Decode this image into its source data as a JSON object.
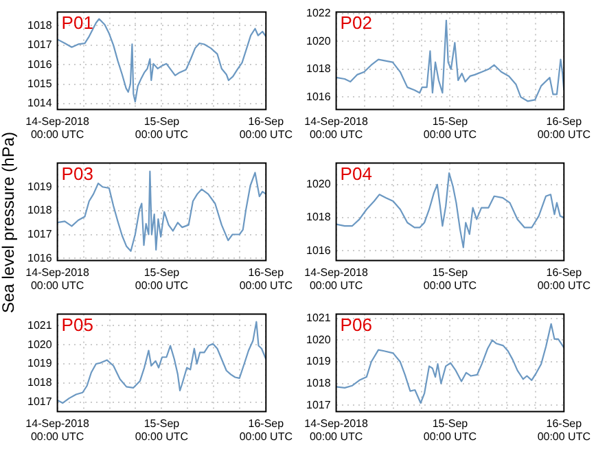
{
  "chart_data": [
    {
      "type": "line",
      "title": "P01",
      "ylabel": "Sea level pressure (hPa)",
      "color": "#6b98c2",
      "xlim": [
        "2018-09-14T00:00",
        "2018-09-16T00:00"
      ],
      "ylim": [
        1013.7,
        1018.7
      ],
      "yticks": [
        1014,
        1015,
        1016,
        1017,
        1018
      ],
      "xticks": [
        {
          "value": "2018-09-14T00:00",
          "label": "14-Sep-2018\n00:00 UTC"
        },
        {
          "value": "2018-09-14T06:00",
          "label": null
        },
        {
          "value": "2018-09-14T12:00",
          "label": null
        },
        {
          "value": "2018-09-14T18:00",
          "label": null
        },
        {
          "value": "2018-09-15T00:00",
          "label": "15-Sep\n00:00 UTC"
        },
        {
          "value": "2018-09-15T06:00",
          "label": null
        },
        {
          "value": "2018-09-15T12:00",
          "label": null
        },
        {
          "value": "2018-09-15T18:00",
          "label": null
        },
        {
          "value": "2018-09-16T00:00",
          "label": "16-Sep\n00:00 UTC"
        }
      ],
      "grid": true,
      "x": [
        "2018-09-14T00:00",
        "2018-09-14T01:42",
        "2018-09-14T03:18",
        "2018-09-14T04:48",
        "2018-09-14T06:18",
        "2018-09-14T07:18",
        "2018-09-14T08:54",
        "2018-09-14T09:36",
        "2018-09-14T10:54",
        "2018-09-14T11:54",
        "2018-09-14T12:54",
        "2018-09-14T13:54",
        "2018-09-14T14:54",
        "2018-09-14T15:48",
        "2018-09-14T16:18",
        "2018-09-14T16:48",
        "2018-09-14T17:12",
        "2018-09-14T17:30",
        "2018-09-14T17:54",
        "2018-09-14T18:30",
        "2018-09-14T19:18",
        "2018-09-14T20:00",
        "2018-09-14T20:42",
        "2018-09-14T21:18",
        "2018-09-14T21:36",
        "2018-09-14T22:06",
        "2018-09-14T23:06",
        "2018-09-15T00:06",
        "2018-09-15T01:06",
        "2018-09-15T02:06",
        "2018-09-15T03:06",
        "2018-09-15T04:06",
        "2018-09-15T05:36",
        "2018-09-15T06:42",
        "2018-09-15T07:42",
        "2018-09-15T08:42",
        "2018-09-15T09:48",
        "2018-09-15T11:18",
        "2018-09-15T12:48",
        "2018-09-15T13:48",
        "2018-09-15T14:54",
        "2018-09-15T15:24",
        "2018-09-15T16:24",
        "2018-09-15T17:24",
        "2018-09-15T18:30",
        "2018-09-15T19:30",
        "2018-09-15T20:30",
        "2018-09-15T21:30",
        "2018-09-15T22:12",
        "2018-09-15T23:12",
        "2018-09-16T00:00"
      ],
      "values": [
        1017.3,
        1017.1,
        1016.9,
        1017.05,
        1017.1,
        1017.45,
        1018.15,
        1018.35,
        1018.05,
        1017.6,
        1017.0,
        1016.2,
        1015.5,
        1014.8,
        1014.6,
        1015.0,
        1017.05,
        1014.5,
        1014.1,
        1014.9,
        1015.3,
        1015.6,
        1015.8,
        1016.3,
        1015.2,
        1016.05,
        1015.8,
        1015.95,
        1016.05,
        1015.75,
        1015.45,
        1015.6,
        1015.75,
        1016.3,
        1016.85,
        1017.1,
        1017.05,
        1016.85,
        1016.55,
        1015.8,
        1015.5,
        1015.2,
        1015.4,
        1015.75,
        1016.1,
        1016.8,
        1017.5,
        1017.85,
        1017.5,
        1017.7,
        1017.45
      ]
    },
    {
      "type": "line",
      "title": "P02",
      "color": "#6b98c2",
      "xlim": [
        "2018-09-14T00:00",
        "2018-09-16T00:00"
      ],
      "ylim": [
        1015.1,
        1022.1
      ],
      "yticks": [
        1016,
        1018,
        1020,
        1022
      ],
      "xticks": [
        {
          "value": "2018-09-14T00:00",
          "label": "14-Sep-2018\n00:00 UTC"
        },
        {
          "value": "2018-09-14T06:00",
          "label": null
        },
        {
          "value": "2018-09-14T12:00",
          "label": null
        },
        {
          "value": "2018-09-14T18:00",
          "label": null
        },
        {
          "value": "2018-09-15T00:00",
          "label": "15-Sep\n00:00 UTC"
        },
        {
          "value": "2018-09-15T06:00",
          "label": null
        },
        {
          "value": "2018-09-15T12:00",
          "label": null
        },
        {
          "value": "2018-09-15T18:00",
          "label": null
        },
        {
          "value": "2018-09-16T00:00",
          "label": "16-Sep\n00:00 UTC"
        }
      ],
      "grid": true,
      "x": [
        "2018-09-14T00:00",
        "2018-09-14T01:48",
        "2018-09-14T03:00",
        "2018-09-14T04:24",
        "2018-09-14T05:54",
        "2018-09-14T07:24",
        "2018-09-14T08:54",
        "2018-09-14T10:24",
        "2018-09-14T11:54",
        "2018-09-14T13:30",
        "2018-09-14T15:00",
        "2018-09-14T16:30",
        "2018-09-14T17:36",
        "2018-09-14T18:06",
        "2018-09-14T19:06",
        "2018-09-14T19:48",
        "2018-09-14T20:18",
        "2018-09-14T20:54",
        "2018-09-14T21:36",
        "2018-09-14T22:24",
        "2018-09-14T23:12",
        "2018-09-14T23:36",
        "2018-09-15T00:12",
        "2018-09-15T01:00",
        "2018-09-15T01:42",
        "2018-09-15T02:30",
        "2018-09-15T03:12",
        "2018-09-15T04:12",
        "2018-09-15T05:12",
        "2018-09-15T06:42",
        "2018-09-15T08:06",
        "2018-09-15T09:18",
        "2018-09-15T10:48",
        "2018-09-15T12:24",
        "2018-09-15T13:54",
        "2018-09-15T14:54",
        "2018-09-15T16:24",
        "2018-09-15T17:54",
        "2018-09-15T19:12",
        "2018-09-15T21:00",
        "2018-09-15T21:42",
        "2018-09-15T22:30",
        "2018-09-15T23:18",
        "2018-09-15T23:42",
        "2018-09-16T00:00"
      ],
      "values": [
        1017.4,
        1017.3,
        1017.1,
        1017.6,
        1017.8,
        1018.3,
        1018.7,
        1018.6,
        1018.5,
        1017.8,
        1016.7,
        1016.5,
        1016.3,
        1016.7,
        1016.7,
        1019.3,
        1016.3,
        1018.5,
        1017.2,
        1016.3,
        1021.5,
        1018.5,
        1018.0,
        1019.9,
        1017.2,
        1017.7,
        1017.1,
        1017.5,
        1017.6,
        1017.8,
        1018.0,
        1018.3,
        1017.8,
        1017.5,
        1016.9,
        1016.0,
        1015.7,
        1015.8,
        1016.8,
        1017.4,
        1016.2,
        1016.2,
        1018.7,
        1017.7,
        1016.5
      ]
    },
    {
      "type": "line",
      "title": "P03",
      "color": "#6b98c2",
      "xlim": [
        "2018-09-14T00:00",
        "2018-09-16T00:00"
      ],
      "ylim": [
        1015.9,
        1020
      ],
      "yticks": [
        1016,
        1017,
        1018,
        1019
      ],
      "xticks": [
        {
          "value": "2018-09-14T00:00",
          "label": "14-Sep-2018\n00:00 UTC"
        },
        {
          "value": "2018-09-14T06:00",
          "label": null
        },
        {
          "value": "2018-09-14T12:00",
          "label": null
        },
        {
          "value": "2018-09-14T18:00",
          "label": null
        },
        {
          "value": "2018-09-15T00:00",
          "label": "15-Sep\n00:00 UTC"
        },
        {
          "value": "2018-09-15T06:00",
          "label": null
        },
        {
          "value": "2018-09-15T12:00",
          "label": null
        },
        {
          "value": "2018-09-15T18:00",
          "label": null
        },
        {
          "value": "2018-09-16T00:00",
          "label": "16-Sep\n00:00 UTC"
        }
      ],
      "grid": true,
      "x": [
        "2018-09-14T00:00",
        "2018-09-14T01:42",
        "2018-09-14T03:18",
        "2018-09-14T04:48",
        "2018-09-14T06:18",
        "2018-09-14T07:18",
        "2018-09-14T08:18",
        "2018-09-14T09:24",
        "2018-09-14T10:24",
        "2018-09-14T11:54",
        "2018-09-14T12:54",
        "2018-09-14T13:54",
        "2018-09-14T14:54",
        "2018-09-14T15:54",
        "2018-09-14T16:54",
        "2018-09-14T17:54",
        "2018-09-14T18:54",
        "2018-09-14T19:24",
        "2018-09-14T19:54",
        "2018-09-14T20:24",
        "2018-09-14T21:00",
        "2018-09-14T21:18",
        "2018-09-14T21:42",
        "2018-09-14T22:18",
        "2018-09-14T22:42",
        "2018-09-14T23:12",
        "2018-09-14T23:48",
        "2018-09-15T00:36",
        "2018-09-15T01:36",
        "2018-09-15T02:36",
        "2018-09-15T03:42",
        "2018-09-15T04:42",
        "2018-09-15T06:12",
        "2018-09-15T07:12",
        "2018-09-15T08:12",
        "2018-09-15T09:12",
        "2018-09-15T10:42",
        "2018-09-15T12:18",
        "2018-09-15T13:48",
        "2018-09-15T15:18",
        "2018-09-15T16:18",
        "2018-09-15T17:54",
        "2018-09-15T18:42",
        "2018-09-15T19:24",
        "2018-09-15T20:24",
        "2018-09-15T21:30",
        "2018-09-15T22:30",
        "2018-09-15T23:12",
        "2018-09-16T00:00"
      ],
      "values": [
        1017.5,
        1017.55,
        1017.35,
        1017.6,
        1017.75,
        1018.4,
        1018.7,
        1019.15,
        1019.0,
        1018.95,
        1018.2,
        1017.55,
        1016.95,
        1016.5,
        1016.3,
        1017.0,
        1018.05,
        1018.3,
        1016.55,
        1017.45,
        1017.0,
        1019.65,
        1017.0,
        1017.85,
        1016.35,
        1017.65,
        1016.9,
        1017.95,
        1017.4,
        1017.15,
        1017.5,
        1017.3,
        1017.4,
        1018.4,
        1018.7,
        1018.9,
        1018.7,
        1018.3,
        1017.4,
        1016.75,
        1017.0,
        1017.0,
        1017.2,
        1018.05,
        1019.05,
        1019.6,
        1018.6,
        1018.8,
        1018.7
      ]
    },
    {
      "type": "line",
      "title": "P04",
      "color": "#6b98c2",
      "xlim": [
        "2018-09-14T00:00",
        "2018-09-16T00:00"
      ],
      "ylim": [
        1015.4,
        1021.3
      ],
      "yticks": [
        1016,
        1018,
        1020
      ],
      "xticks": [
        {
          "value": "2018-09-14T00:00",
          "label": "14-Sep-2018\n00:00 UTC"
        },
        {
          "value": "2018-09-14T06:00",
          "label": null
        },
        {
          "value": "2018-09-14T12:00",
          "label": null
        },
        {
          "value": "2018-09-14T18:00",
          "label": null
        },
        {
          "value": "2018-09-15T00:00",
          "label": "15-Sep\n00:00 UTC"
        },
        {
          "value": "2018-09-15T06:00",
          "label": null
        },
        {
          "value": "2018-09-15T12:00",
          "label": null
        },
        {
          "value": "2018-09-15T18:00",
          "label": null
        },
        {
          "value": "2018-09-16T00:00",
          "label": "16-Sep\n00:00 UTC"
        }
      ],
      "grid": true,
      "x": [
        "2018-09-14T00:00",
        "2018-09-14T01:48",
        "2018-09-14T03:24",
        "2018-09-14T04:54",
        "2018-09-14T06:24",
        "2018-09-14T08:00",
        "2018-09-14T09:06",
        "2018-09-14T10:30",
        "2018-09-14T12:00",
        "2018-09-14T13:30",
        "2018-09-14T15:00",
        "2018-09-14T16:30",
        "2018-09-14T17:36",
        "2018-09-14T18:36",
        "2018-09-14T19:36",
        "2018-09-14T20:36",
        "2018-09-14T21:18",
        "2018-09-14T21:54",
        "2018-09-14T22:24",
        "2018-09-14T23:06",
        "2018-09-14T23:48",
        "2018-09-15T00:36",
        "2018-09-15T01:18",
        "2018-09-15T02:06",
        "2018-09-15T02:48",
        "2018-09-15T03:18",
        "2018-09-15T04:06",
        "2018-09-15T04:48",
        "2018-09-15T05:36",
        "2018-09-15T06:36",
        "2018-09-15T08:06",
        "2018-09-15T09:18",
        "2018-09-15T11:06",
        "2018-09-15T12:36",
        "2018-09-15T14:12",
        "2018-09-15T15:42",
        "2018-09-15T17:12",
        "2018-09-15T18:42",
        "2018-09-15T20:12",
        "2018-09-15T21:12",
        "2018-09-15T22:00",
        "2018-09-15T22:30",
        "2018-09-15T23:12",
        "2018-09-16T00:00"
      ],
      "values": [
        1017.6,
        1017.5,
        1017.5,
        1017.9,
        1018.5,
        1019.0,
        1019.4,
        1019.2,
        1019.0,
        1018.5,
        1017.7,
        1017.4,
        1017.4,
        1017.7,
        1018.5,
        1019.5,
        1020.0,
        1018.7,
        1017.5,
        1018.7,
        1020.7,
        1019.9,
        1018.9,
        1017.3,
        1016.2,
        1017.7,
        1017.0,
        1018.6,
        1017.9,
        1018.6,
        1018.6,
        1019.3,
        1019.2,
        1018.9,
        1017.9,
        1017.4,
        1017.4,
        1018.1,
        1019.3,
        1019.4,
        1018.2,
        1018.9,
        1018.1,
        1018.0
      ]
    },
    {
      "type": "line",
      "title": "P05",
      "color": "#6b98c2",
      "xlim": [
        "2018-09-14T00:00",
        "2018-09-16T00:00"
      ],
      "ylim": [
        1016.5,
        1021.6
      ],
      "yticks": [
        1017,
        1018,
        1019,
        1020,
        1021
      ],
      "xticks": [
        {
          "value": "2018-09-14T00:00",
          "label": "14-Sep-2018\n00:00 UTC"
        },
        {
          "value": "2018-09-14T06:00",
          "label": null
        },
        {
          "value": "2018-09-14T12:00",
          "label": null
        },
        {
          "value": "2018-09-14T18:00",
          "label": null
        },
        {
          "value": "2018-09-15T00:00",
          "label": "15-Sep\n00:00 UTC"
        },
        {
          "value": "2018-09-15T06:00",
          "label": null
        },
        {
          "value": "2018-09-15T12:00",
          "label": null
        },
        {
          "value": "2018-09-15T18:00",
          "label": null
        },
        {
          "value": "2018-09-16T00:00",
          "label": "16-Sep\n00:00 UTC"
        }
      ],
      "grid": true,
      "x": [
        "2018-09-14T00:00",
        "2018-09-14T01:12",
        "2018-09-14T02:42",
        "2018-09-14T04:18",
        "2018-09-14T05:48",
        "2018-09-14T06:48",
        "2018-09-14T07:48",
        "2018-09-14T08:54",
        "2018-09-14T09:54",
        "2018-09-14T11:24",
        "2018-09-14T12:54",
        "2018-09-14T14:24",
        "2018-09-14T15:54",
        "2018-09-14T17:30",
        "2018-09-14T19:00",
        "2018-09-14T20:00",
        "2018-09-14T21:00",
        "2018-09-14T21:36",
        "2018-09-14T22:36",
        "2018-09-14T23:18",
        "2018-09-15T00:06",
        "2018-09-15T01:06",
        "2018-09-15T02:00",
        "2018-09-15T02:54",
        "2018-09-15T03:42",
        "2018-09-15T04:12",
        "2018-09-15T04:42",
        "2018-09-15T05:48",
        "2018-09-15T06:36",
        "2018-09-15T07:30",
        "2018-09-15T08:06",
        "2018-09-15T08:48",
        "2018-09-15T09:48",
        "2018-09-15T10:48",
        "2018-09-15T11:48",
        "2018-09-15T12:48",
        "2018-09-15T13:48",
        "2018-09-15T14:54",
        "2018-09-15T15:54",
        "2018-09-15T16:54",
        "2018-09-15T17:54",
        "2018-09-15T19:00",
        "2018-09-15T20:00",
        "2018-09-15T21:00",
        "2018-09-15T21:48",
        "2018-09-15T22:18",
        "2018-09-15T23:00",
        "2018-09-16T00:00"
      ],
      "values": [
        1017.1,
        1016.95,
        1017.2,
        1017.4,
        1017.5,
        1017.85,
        1018.55,
        1019.0,
        1019.05,
        1019.2,
        1018.9,
        1018.2,
        1017.8,
        1017.75,
        1018.1,
        1018.8,
        1019.7,
        1018.9,
        1019.15,
        1018.8,
        1019.35,
        1019.35,
        1019.95,
        1019.25,
        1018.45,
        1017.6,
        1017.95,
        1018.8,
        1018.7,
        1019.8,
        1019.0,
        1019.6,
        1019.6,
        1019.95,
        1020.05,
        1019.8,
        1019.25,
        1018.65,
        1018.45,
        1018.3,
        1018.25,
        1019.0,
        1019.7,
        1020.2,
        1021.2,
        1019.95,
        1019.8,
        1019.25
      ]
    },
    {
      "type": "line",
      "title": "P06",
      "color": "#6b98c2",
      "xlim": [
        "2018-09-14T00:00",
        "2018-09-16T00:00"
      ],
      "ylim": [
        1016.7,
        1021.2
      ],
      "yticks": [
        1017,
        1018,
        1019,
        1020,
        1021
      ],
      "xticks": [
        {
          "value": "2018-09-14T00:00",
          "label": "14-Sep-2018\n00:00 UTC"
        },
        {
          "value": "2018-09-14T06:00",
          "label": null
        },
        {
          "value": "2018-09-14T12:00",
          "label": null
        },
        {
          "value": "2018-09-14T18:00",
          "label": null
        },
        {
          "value": "2018-09-15T00:00",
          "label": "15-Sep\n00:00 UTC"
        },
        {
          "value": "2018-09-15T06:00",
          "label": null
        },
        {
          "value": "2018-09-15T12:00",
          "label": null
        },
        {
          "value": "2018-09-15T18:00",
          "label": null
        },
        {
          "value": "2018-09-16T00:00",
          "label": "16-Sep\n00:00 UTC"
        }
      ],
      "grid": true,
      "x": [
        "2018-09-14T00:00",
        "2018-09-14T01:48",
        "2018-09-14T03:24",
        "2018-09-14T04:54",
        "2018-09-14T06:24",
        "2018-09-14T07:24",
        "2018-09-14T08:54",
        "2018-09-14T10:06",
        "2018-09-14T12:00",
        "2018-09-14T13:30",
        "2018-09-14T14:30",
        "2018-09-14T15:36",
        "2018-09-14T16:36",
        "2018-09-14T17:48",
        "2018-09-14T18:36",
        "2018-09-14T19:36",
        "2018-09-14T20:18",
        "2018-09-14T20:54",
        "2018-09-14T21:24",
        "2018-09-14T22:06",
        "2018-09-14T23:06",
        "2018-09-15T00:06",
        "2018-09-15T01:12",
        "2018-09-15T02:24",
        "2018-09-15T03:24",
        "2018-09-15T04:24",
        "2018-09-15T05:42",
        "2018-09-15T06:42",
        "2018-09-15T07:54",
        "2018-09-15T08:54",
        "2018-09-15T09:42",
        "2018-09-15T11:12",
        "2018-09-15T12:12",
        "2018-09-15T13:12",
        "2018-09-15T14:12",
        "2018-09-15T15:24",
        "2018-09-15T16:12",
        "2018-09-15T17:12",
        "2018-09-15T18:12",
        "2018-09-15T19:12",
        "2018-09-15T20:12",
        "2018-09-15T21:18",
        "2018-09-15T22:00",
        "2018-09-15T22:48",
        "2018-09-16T00:00"
      ],
      "values": [
        1017.85,
        1017.8,
        1017.9,
        1018.15,
        1018.3,
        1019.0,
        1019.55,
        1019.5,
        1019.4,
        1019.0,
        1018.4,
        1017.65,
        1017.7,
        1017.1,
        1017.55,
        1018.8,
        1018.7,
        1018.3,
        1018.9,
        1018.0,
        1018.8,
        1018.95,
        1018.6,
        1018.1,
        1018.5,
        1018.35,
        1018.4,
        1018.9,
        1019.6,
        1020.0,
        1019.85,
        1019.75,
        1019.5,
        1019.1,
        1018.6,
        1018.2,
        1018.35,
        1018.15,
        1018.5,
        1018.9,
        1019.7,
        1020.75,
        1020.05,
        1020.05,
        1019.65
      ]
    }
  ]
}
